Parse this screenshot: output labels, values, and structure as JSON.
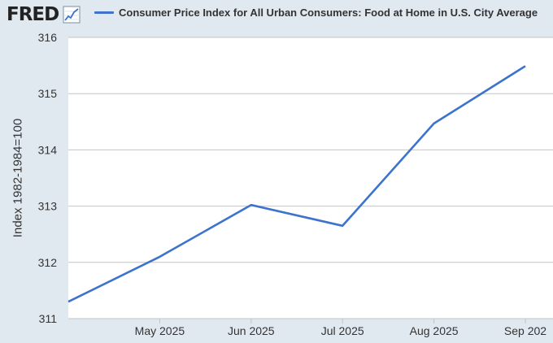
{
  "header": {
    "logo_text": "FRED",
    "logo_icon": "line-chart-icon"
  },
  "colors": {
    "background": "#e1e9f0",
    "plot_background": "#ffffff",
    "series_line": "#3b73cd",
    "grid": "#c4c4c4"
  },
  "chart_data": {
    "type": "line",
    "title": "",
    "xlabel": "",
    "ylabel": "Index 1982-1984=100",
    "series": [
      {
        "name": "Consumer Price Index for All Urban Consumers: Food at Home in U.S. City Average",
        "x": [
          "2025-04",
          "2025-05",
          "2025-06",
          "2025-07",
          "2025-08",
          "2025-09"
        ],
        "values": [
          311.3,
          312.1,
          313.02,
          312.65,
          314.47,
          315.49
        ]
      }
    ],
    "x_tick_labels": [
      "May 2025",
      "Jun 2025",
      "Jul 2025",
      "Aug 2025",
      "Sep 202"
    ],
    "y_ticks": [
      311,
      312,
      313,
      314,
      315,
      316
    ],
    "ylim": [
      311,
      316
    ],
    "grid": "horizontal",
    "legend_position": "top"
  }
}
